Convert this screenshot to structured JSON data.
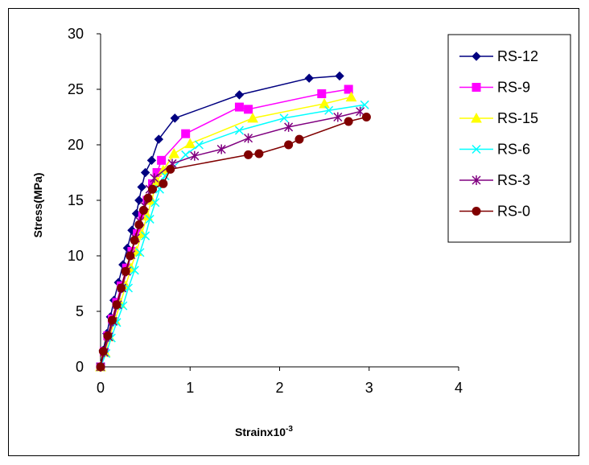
{
  "chart_data": {
    "type": "line",
    "xlabel": "Strainx10",
    "xlabel_sup": "-3",
    "ylabel": "Stress(MPa)",
    "xlim": [
      0,
      4
    ],
    "ylim": [
      0,
      30
    ],
    "xticks": [
      "0",
      "1",
      "2",
      "3",
      "4"
    ],
    "yticks": [
      "0",
      "5",
      "10",
      "15",
      "20",
      "25",
      "30"
    ],
    "grid": false,
    "legend_position": "top-right",
    "series": [
      {
        "name": "RS-12",
        "color": "#000080",
        "marker": "diamond",
        "points": [
          [
            0,
            0
          ],
          [
            0.03,
            1.5
          ],
          [
            0.07,
            3
          ],
          [
            0.11,
            4.5
          ],
          [
            0.15,
            6
          ],
          [
            0.2,
            7.6
          ],
          [
            0.25,
            9.2
          ],
          [
            0.3,
            10.7
          ],
          [
            0.35,
            12.3
          ],
          [
            0.4,
            13.8
          ],
          [
            0.43,
            15
          ],
          [
            0.46,
            16.2
          ],
          [
            0.5,
            17.5
          ],
          [
            0.57,
            18.6
          ],
          [
            0.65,
            20.5
          ],
          [
            0.83,
            22.4
          ],
          [
            1.55,
            24.5
          ],
          [
            2.33,
            26
          ],
          [
            2.67,
            26.2
          ]
        ]
      },
      {
        "name": "RS-9",
        "color": "#ff00ff",
        "marker": "square",
        "points": [
          [
            0,
            0
          ],
          [
            0.04,
            1.4
          ],
          [
            0.08,
            2.8
          ],
          [
            0.13,
            4.3
          ],
          [
            0.18,
            5.8
          ],
          [
            0.23,
            7.3
          ],
          [
            0.29,
            8.9
          ],
          [
            0.35,
            10.4
          ],
          [
            0.41,
            12
          ],
          [
            0.47,
            13.6
          ],
          [
            0.52,
            15
          ],
          [
            0.58,
            16.5
          ],
          [
            0.63,
            17.5
          ],
          [
            0.68,
            18.6
          ],
          [
            0.95,
            21
          ],
          [
            1.55,
            23.4
          ],
          [
            1.65,
            23.2
          ],
          [
            2.47,
            24.6
          ],
          [
            2.77,
            25
          ]
        ]
      },
      {
        "name": "RS-15",
        "color": "#ffff00",
        "marker": "triangle",
        "points": [
          [
            0,
            0
          ],
          [
            0.05,
            1.3
          ],
          [
            0.1,
            2.7
          ],
          [
            0.16,
            4.2
          ],
          [
            0.22,
            5.7
          ],
          [
            0.28,
            7.3
          ],
          [
            0.34,
            8.9
          ],
          [
            0.4,
            10.4
          ],
          [
            0.46,
            12
          ],
          [
            0.52,
            13.6
          ],
          [
            0.57,
            15
          ],
          [
            0.63,
            16.7
          ],
          [
            0.7,
            17.7
          ],
          [
            0.82,
            19.2
          ],
          [
            1.0,
            20.1
          ],
          [
            1.7,
            22.4
          ],
          [
            2.5,
            23.7
          ],
          [
            2.8,
            24.3
          ]
        ]
      },
      {
        "name": "RS-6",
        "color": "#00ffff",
        "marker": "x",
        "points": [
          [
            0,
            0
          ],
          [
            0.06,
            1.2
          ],
          [
            0.12,
            2.6
          ],
          [
            0.18,
            4
          ],
          [
            0.25,
            5.5
          ],
          [
            0.31,
            7.1
          ],
          [
            0.38,
            8.7
          ],
          [
            0.44,
            10.3
          ],
          [
            0.5,
            11.8
          ],
          [
            0.55,
            13.3
          ],
          [
            0.61,
            14.8
          ],
          [
            0.66,
            16
          ],
          [
            0.72,
            17.2
          ],
          [
            0.95,
            19.1
          ],
          [
            1.1,
            20
          ],
          [
            1.55,
            21.3
          ],
          [
            2.05,
            22.4
          ],
          [
            2.55,
            23.1
          ],
          [
            2.95,
            23.6
          ]
        ]
      },
      {
        "name": "RS-3",
        "color": "#800080",
        "marker": "star",
        "points": [
          [
            0,
            0
          ],
          [
            0.04,
            1.3
          ],
          [
            0.09,
            2.7
          ],
          [
            0.14,
            4.1
          ],
          [
            0.19,
            5.6
          ],
          [
            0.24,
            7.1
          ],
          [
            0.29,
            8.6
          ],
          [
            0.34,
            10.1
          ],
          [
            0.39,
            11.6
          ],
          [
            0.44,
            13.1
          ],
          [
            0.49,
            14.5
          ],
          [
            0.55,
            16
          ],
          [
            0.6,
            17
          ],
          [
            0.8,
            18.3
          ],
          [
            1.05,
            19
          ],
          [
            1.35,
            19.6
          ],
          [
            1.65,
            20.6
          ],
          [
            2.1,
            21.6
          ],
          [
            2.65,
            22.5
          ],
          [
            2.9,
            23
          ]
        ]
      },
      {
        "name": "RS-0",
        "color": "#800000",
        "marker": "circle",
        "points": [
          [
            0,
            0
          ],
          [
            0.03,
            1.4
          ],
          [
            0.08,
            2.8
          ],
          [
            0.13,
            4.2
          ],
          [
            0.18,
            5.6
          ],
          [
            0.23,
            7.1
          ],
          [
            0.28,
            8.6
          ],
          [
            0.33,
            10
          ],
          [
            0.38,
            11.4
          ],
          [
            0.43,
            12.8
          ],
          [
            0.48,
            14.1
          ],
          [
            0.53,
            15.2
          ],
          [
            0.58,
            16
          ],
          [
            0.7,
            16.5
          ],
          [
            0.78,
            17.8
          ],
          [
            1.65,
            19.1
          ],
          [
            1.77,
            19.2
          ],
          [
            2.1,
            20
          ],
          [
            2.22,
            20.5
          ],
          [
            2.77,
            22.1
          ],
          [
            2.97,
            22.5
          ]
        ]
      }
    ]
  }
}
